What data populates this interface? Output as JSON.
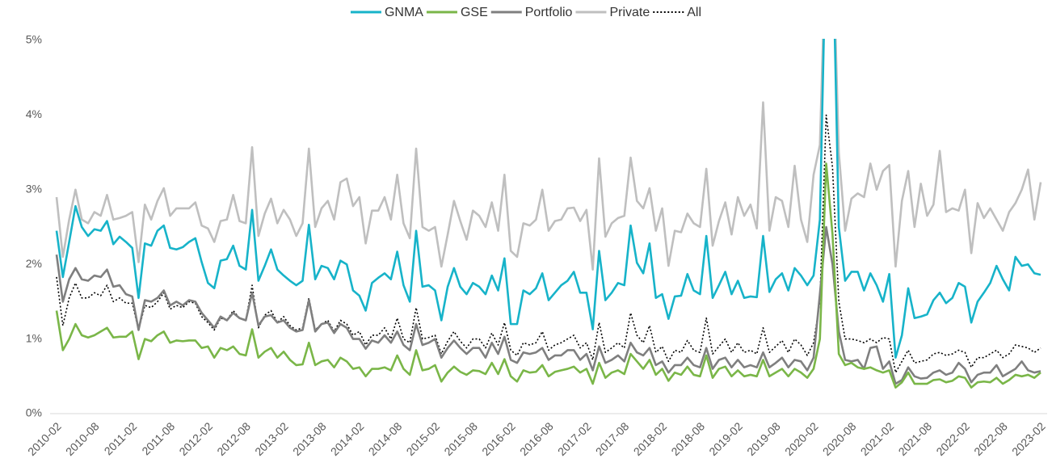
{
  "chart_data": {
    "type": "line",
    "legend": "top",
    "categories": [
      "2010-02",
      null,
      null,
      null,
      null,
      null,
      "2010-08",
      null,
      null,
      null,
      null,
      null,
      "2011-02",
      null,
      null,
      null,
      null,
      null,
      "2011-08",
      null,
      null,
      null,
      null,
      null,
      "2012-02",
      null,
      null,
      null,
      null,
      null,
      "2012-08",
      null,
      null,
      null,
      null,
      null,
      "2013-02",
      null,
      null,
      null,
      null,
      null,
      "2013-08",
      null,
      null,
      null,
      null,
      null,
      "2014-02",
      null,
      null,
      null,
      null,
      null,
      "2014-08",
      null,
      null,
      null,
      null,
      null,
      "2015-02",
      null,
      null,
      null,
      null,
      null,
      "2015-08",
      null,
      null,
      null,
      null,
      null,
      "2016-02",
      null,
      null,
      null,
      null,
      null,
      "2016-08",
      null,
      null,
      null,
      null,
      null,
      "2017-02",
      null,
      null,
      null,
      null,
      null,
      "2017-08",
      null,
      null,
      null,
      null,
      null,
      "2018-02",
      null,
      null,
      null,
      null,
      null,
      "2018-08",
      null,
      null,
      null,
      null,
      null,
      "2019-02",
      null,
      null,
      null,
      null,
      null,
      "2019-08",
      null,
      null,
      null,
      null,
      null,
      "2020-02",
      null,
      null,
      null,
      null,
      null,
      "2020-08",
      null,
      null,
      null,
      null,
      null,
      "2021-02",
      null,
      null,
      null,
      null,
      null,
      "2021-08",
      null,
      null,
      null,
      null,
      null,
      "2022-02",
      null,
      null,
      null,
      null,
      null,
      "2022-08",
      null,
      null,
      null,
      null,
      null,
      "2023-02"
    ],
    "ylim": [
      0,
      5
    ],
    "yticks": [
      {
        "value": 0,
        "label": "0%"
      },
      {
        "value": 1,
        "label": "1%"
      },
      {
        "value": 2,
        "label": "2%"
      },
      {
        "value": 3,
        "label": "3%"
      },
      {
        "value": 4,
        "label": "4%"
      },
      {
        "value": 5,
        "label": "5%"
      }
    ],
    "series": [
      {
        "name": "GNMA",
        "color": "#17b3c9",
        "style": "solid",
        "values": [
          2.45,
          1.83,
          2.3,
          2.78,
          2.5,
          2.38,
          2.47,
          2.45,
          2.58,
          2.27,
          2.37,
          2.3,
          2.22,
          1.55,
          2.28,
          2.25,
          2.45,
          2.52,
          2.22,
          2.2,
          2.23,
          2.3,
          2.35,
          2.03,
          1.75,
          1.68,
          2.05,
          2.07,
          2.25,
          1.98,
          1.93,
          2.73,
          1.78,
          1.98,
          2.2,
          1.93,
          1.85,
          1.78,
          1.72,
          1.78,
          2.53,
          1.8,
          1.98,
          1.95,
          1.8,
          2.05,
          2.0,
          1.65,
          1.58,
          1.38,
          1.75,
          1.82,
          1.88,
          1.8,
          2.17,
          1.72,
          1.5,
          2.45,
          1.7,
          1.72,
          1.65,
          1.25,
          1.7,
          1.95,
          1.7,
          1.6,
          1.75,
          1.7,
          1.6,
          1.85,
          1.65,
          2.08,
          1.2,
          1.2,
          1.65,
          1.6,
          1.68,
          1.88,
          1.52,
          1.62,
          1.72,
          1.78,
          1.9,
          1.62,
          1.62,
          1.13,
          2.18,
          1.52,
          1.62,
          1.75,
          1.72,
          2.52,
          2.02,
          1.88,
          2.28,
          1.55,
          1.6,
          1.27,
          1.57,
          1.58,
          1.87,
          1.65,
          1.6,
          2.38,
          1.55,
          1.72,
          1.9,
          1.6,
          1.78,
          1.55,
          1.57,
          1.56,
          2.38,
          1.63,
          1.8,
          1.88,
          1.65,
          1.95,
          1.85,
          1.72,
          1.85,
          2.6,
          6.5,
          6.5,
          2.5,
          1.78,
          1.9,
          1.9,
          1.65,
          1.88,
          1.72,
          1.5,
          1.87,
          0.75,
          1.05,
          1.68,
          1.28,
          1.3,
          1.33,
          1.52,
          1.62,
          1.48,
          1.55,
          1.75,
          1.7,
          1.22,
          1.5,
          1.62,
          1.75,
          1.98,
          1.8,
          1.65,
          2.1,
          1.98,
          2.0,
          1.88,
          1.86
        ]
      },
      {
        "name": "GSE",
        "color": "#7ab648",
        "style": "solid",
        "values": [
          1.38,
          0.85,
          1.0,
          1.2,
          1.05,
          1.02,
          1.05,
          1.1,
          1.15,
          1.02,
          1.03,
          1.03,
          1.1,
          0.73,
          1.0,
          0.97,
          1.05,
          1.1,
          0.95,
          0.98,
          0.97,
          0.98,
          0.98,
          0.88,
          0.9,
          0.75,
          0.88,
          0.85,
          0.9,
          0.8,
          0.78,
          1.13,
          0.75,
          0.83,
          0.88,
          0.75,
          0.83,
          0.72,
          0.65,
          0.66,
          0.95,
          0.65,
          0.7,
          0.72,
          0.62,
          0.75,
          0.7,
          0.6,
          0.62,
          0.5,
          0.6,
          0.6,
          0.62,
          0.58,
          0.78,
          0.6,
          0.52,
          0.85,
          0.58,
          0.6,
          0.65,
          0.43,
          0.55,
          0.63,
          0.56,
          0.52,
          0.58,
          0.57,
          0.53,
          0.68,
          0.53,
          0.73,
          0.5,
          0.43,
          0.58,
          0.55,
          0.56,
          0.65,
          0.5,
          0.56,
          0.58,
          0.6,
          0.63,
          0.55,
          0.6,
          0.4,
          0.68,
          0.48,
          0.55,
          0.58,
          0.53,
          0.8,
          0.7,
          0.6,
          0.72,
          0.52,
          0.6,
          0.44,
          0.55,
          0.52,
          0.63,
          0.52,
          0.5,
          0.78,
          0.48,
          0.6,
          0.63,
          0.5,
          0.58,
          0.5,
          0.52,
          0.5,
          0.72,
          0.5,
          0.55,
          0.6,
          0.5,
          0.6,
          0.55,
          0.48,
          0.6,
          1.0,
          3.35,
          2.4,
          0.8,
          0.65,
          0.68,
          0.62,
          0.6,
          0.62,
          0.58,
          0.55,
          0.58,
          0.35,
          0.42,
          0.55,
          0.4,
          0.4,
          0.4,
          0.45,
          0.46,
          0.42,
          0.44,
          0.5,
          0.48,
          0.35,
          0.42,
          0.43,
          0.42,
          0.48,
          0.4,
          0.45,
          0.52,
          0.5,
          0.52,
          0.48,
          0.55
        ]
      },
      {
        "name": "Portfolio",
        "color": "#7f7f7f",
        "style": "solid",
        "values": [
          2.13,
          1.5,
          1.8,
          1.95,
          1.8,
          1.78,
          1.85,
          1.83,
          1.93,
          1.7,
          1.72,
          1.6,
          1.57,
          1.12,
          1.52,
          1.5,
          1.55,
          1.65,
          1.45,
          1.5,
          1.45,
          1.52,
          1.5,
          1.35,
          1.25,
          1.15,
          1.3,
          1.25,
          1.35,
          1.28,
          1.25,
          1.62,
          1.18,
          1.3,
          1.32,
          1.22,
          1.25,
          1.15,
          1.1,
          1.12,
          1.52,
          1.1,
          1.2,
          1.22,
          1.08,
          1.2,
          1.15,
          1.0,
          1.0,
          0.87,
          0.98,
          0.95,
          1.05,
          0.95,
          1.1,
          0.92,
          0.85,
          1.2,
          0.92,
          0.95,
          1.0,
          0.75,
          0.88,
          0.98,
          0.88,
          0.8,
          0.88,
          0.88,
          0.75,
          0.95,
          0.8,
          1.03,
          0.72,
          0.68,
          0.82,
          0.8,
          0.82,
          0.88,
          0.72,
          0.78,
          0.78,
          0.85,
          0.85,
          0.72,
          0.8,
          0.58,
          0.9,
          0.68,
          0.72,
          0.78,
          0.7,
          0.95,
          0.82,
          0.78,
          0.88,
          0.65,
          0.7,
          0.55,
          0.65,
          0.65,
          0.75,
          0.65,
          0.62,
          0.88,
          0.6,
          0.72,
          0.75,
          0.62,
          0.72,
          0.62,
          0.65,
          0.62,
          0.82,
          0.62,
          0.68,
          0.75,
          0.62,
          0.72,
          0.7,
          0.58,
          0.75,
          1.6,
          2.5,
          2.0,
          1.1,
          0.72,
          0.7,
          0.72,
          0.6,
          0.88,
          0.9,
          0.6,
          0.7,
          0.4,
          0.45,
          0.62,
          0.5,
          0.47,
          0.48,
          0.55,
          0.58,
          0.52,
          0.55,
          0.68,
          0.6,
          0.42,
          0.52,
          0.55,
          0.55,
          0.65,
          0.5,
          0.55,
          0.6,
          0.7,
          0.58,
          0.55,
          0.57
        ]
      },
      {
        "name": "Private",
        "color": "#bfbfbf",
        "style": "solid",
        "values": [
          2.9,
          2.1,
          2.6,
          3.0,
          2.6,
          2.55,
          2.7,
          2.65,
          2.93,
          2.6,
          2.62,
          2.65,
          2.7,
          2.03,
          2.8,
          2.6,
          2.85,
          3.02,
          2.65,
          2.75,
          2.75,
          2.75,
          2.83,
          2.52,
          2.48,
          2.3,
          2.58,
          2.6,
          2.93,
          2.58,
          2.55,
          3.57,
          2.38,
          2.68,
          2.88,
          2.55,
          2.73,
          2.6,
          2.38,
          2.55,
          3.55,
          2.5,
          2.75,
          2.85,
          2.6,
          3.1,
          3.15,
          2.78,
          2.9,
          2.28,
          2.72,
          2.72,
          2.9,
          2.6,
          3.2,
          2.55,
          2.35,
          3.55,
          2.5,
          2.45,
          2.5,
          1.97,
          2.4,
          2.85,
          2.58,
          2.33,
          2.72,
          2.65,
          2.5,
          2.83,
          2.45,
          3.2,
          2.18,
          2.1,
          2.55,
          2.52,
          2.6,
          3.0,
          2.45,
          2.58,
          2.6,
          2.75,
          2.76,
          2.58,
          2.73,
          1.93,
          3.42,
          2.37,
          2.55,
          2.62,
          2.65,
          3.43,
          2.85,
          2.75,
          3.02,
          2.45,
          2.75,
          1.98,
          2.45,
          2.43,
          2.68,
          2.55,
          2.5,
          3.28,
          2.25,
          2.58,
          2.83,
          2.4,
          2.9,
          2.65,
          2.8,
          2.48,
          4.17,
          2.45,
          2.9,
          2.85,
          2.5,
          3.32,
          2.6,
          2.3,
          3.2,
          3.6,
          6.5,
          6.5,
          3.5,
          2.45,
          2.88,
          2.95,
          2.9,
          3.35,
          3.0,
          3.25,
          3.33,
          1.97,
          2.85,
          3.25,
          2.5,
          3.08,
          2.65,
          2.8,
          3.52,
          2.7,
          2.75,
          2.72,
          3.0,
          2.15,
          2.82,
          2.62,
          2.75,
          2.6,
          2.45,
          2.7,
          2.82,
          3.0,
          3.27,
          2.6,
          3.1
        ]
      },
      {
        "name": "All",
        "color": "#000000",
        "style": "dotted",
        "values": [
          1.83,
          1.18,
          1.55,
          1.75,
          1.55,
          1.55,
          1.62,
          1.58,
          1.72,
          1.5,
          1.55,
          1.48,
          1.48,
          1.12,
          1.45,
          1.42,
          1.5,
          1.62,
          1.4,
          1.45,
          1.42,
          1.5,
          1.48,
          1.3,
          1.22,
          1.12,
          1.28,
          1.25,
          1.38,
          1.28,
          1.25,
          1.72,
          1.15,
          1.32,
          1.38,
          1.22,
          1.3,
          1.18,
          1.12,
          1.15,
          1.55,
          1.12,
          1.2,
          1.25,
          1.1,
          1.25,
          1.2,
          1.05,
          1.1,
          0.92,
          1.05,
          1.05,
          1.15,
          1.0,
          1.28,
          1.0,
          0.95,
          1.42,
          1.0,
          1.02,
          1.05,
          0.8,
          0.97,
          1.1,
          0.97,
          0.88,
          1.0,
          1.0,
          0.88,
          1.08,
          0.92,
          1.22,
          0.85,
          0.78,
          0.95,
          0.92,
          0.95,
          1.1,
          0.85,
          0.92,
          0.95,
          1.0,
          1.05,
          0.88,
          0.95,
          0.72,
          1.22,
          0.82,
          0.88,
          0.95,
          0.88,
          1.35,
          1.05,
          0.95,
          1.18,
          0.82,
          0.9,
          0.7,
          0.85,
          0.82,
          0.98,
          0.85,
          0.82,
          1.28,
          0.8,
          0.9,
          1.0,
          0.82,
          0.95,
          0.82,
          0.85,
          0.8,
          1.15,
          0.82,
          0.9,
          0.98,
          0.82,
          1.0,
          0.92,
          0.78,
          0.95,
          1.5,
          4.0,
          3.3,
          1.5,
          1.0,
          1.0,
          0.98,
          0.95,
          1.0,
          0.95,
          1.02,
          1.0,
          0.55,
          0.7,
          0.85,
          0.68,
          0.7,
          0.72,
          0.8,
          0.82,
          0.78,
          0.8,
          0.85,
          0.82,
          0.62,
          0.75,
          0.75,
          0.8,
          0.85,
          0.75,
          0.8,
          0.92,
          0.9,
          0.88,
          0.82,
          0.88
        ]
      }
    ]
  }
}
